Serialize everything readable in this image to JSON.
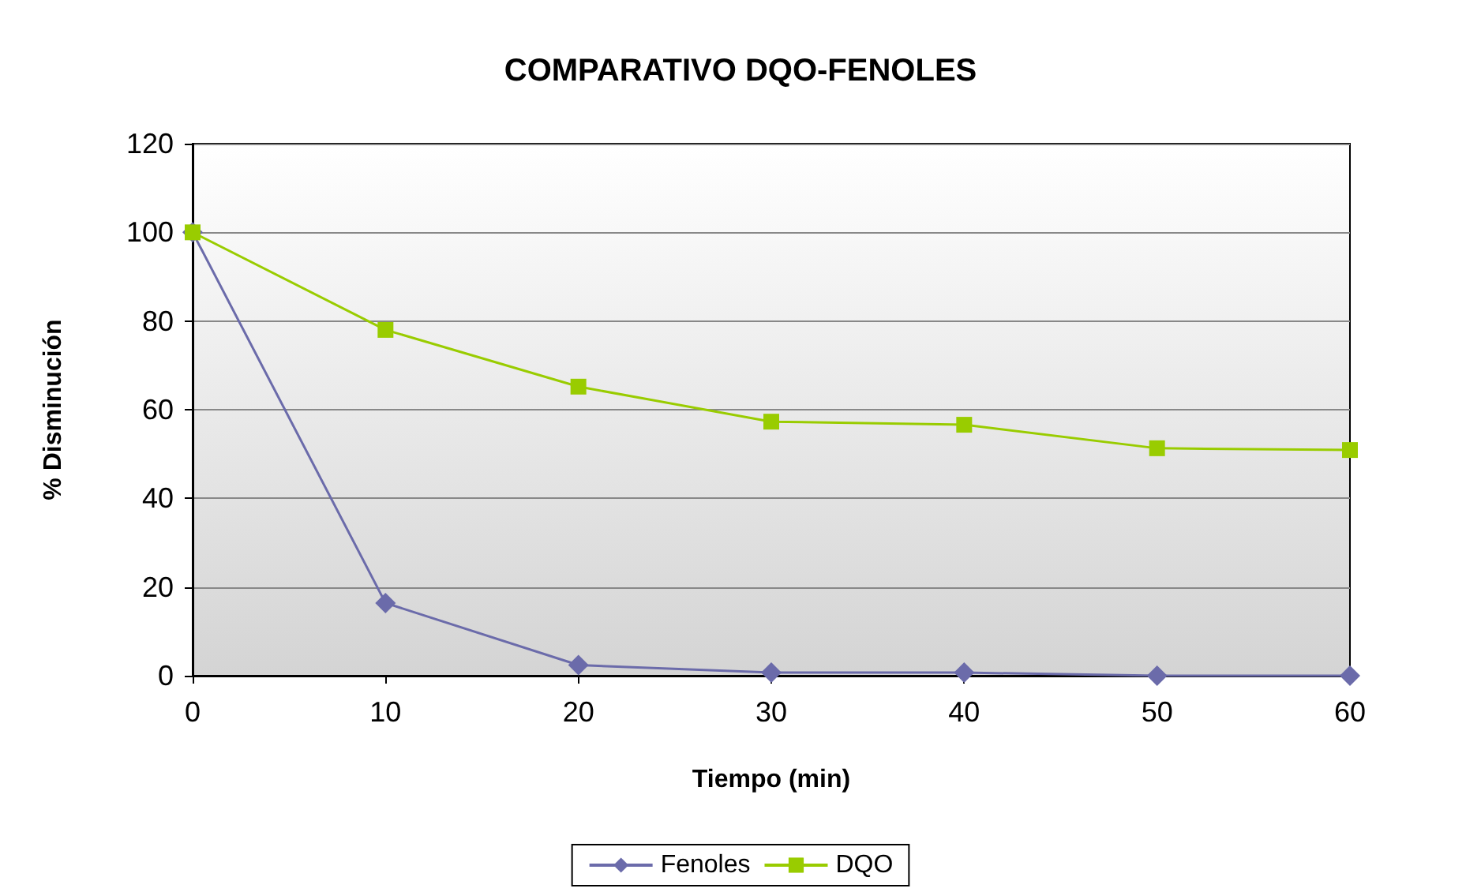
{
  "chart_data": {
    "type": "line",
    "title": "COMPARATIVO DQO-FENOLES",
    "xlabel": "Tiempo (min)",
    "ylabel": "% Disminución",
    "x": [
      0,
      10,
      20,
      30,
      40,
      50,
      60
    ],
    "series": [
      {
        "name": "Fenoles",
        "color": "#6b6baa",
        "marker": "diamond",
        "values": [
          100,
          16.4,
          2.4,
          0.7,
          0.7,
          0,
          0
        ]
      },
      {
        "name": "DQO",
        "color": "#99cc00",
        "marker": "square",
        "values": [
          100,
          78,
          65.2,
          57.3,
          56.6,
          51.3,
          50.9
        ]
      }
    ],
    "xlim": [
      0,
      60
    ],
    "xticks": [
      0,
      10,
      20,
      30,
      40,
      50,
      60
    ],
    "ylim": [
      0,
      120
    ],
    "yticks": [
      0,
      20,
      40,
      60,
      80,
      100,
      120
    ],
    "grid": "y",
    "legend": "bottom",
    "line_style": "solid"
  }
}
